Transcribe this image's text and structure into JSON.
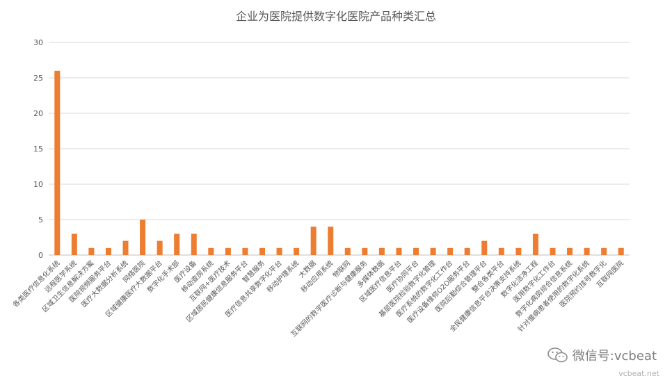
{
  "chart_data": {
    "type": "bar",
    "title": "企业为医院提供数字化医院产品种类汇总",
    "xlabel": "",
    "ylabel": "",
    "ylim": [
      0,
      30
    ],
    "yticks": [
      0,
      5,
      10,
      15,
      20,
      25,
      30
    ],
    "grid": true,
    "legend": "none",
    "color": "#ed7d31",
    "categories": [
      "各类医疗信息化系统",
      "远程医学系统",
      "区域卫生信息解决方案",
      "医院视频服务平台",
      "医疗大数据分析系统",
      "网络医院",
      "区域健康医疗大数据平台",
      "数字化手术部",
      "医疗设备",
      "移动查房系统",
      "互联网+医疗技术",
      "区域居民健康信息服务平台",
      "智慧服务",
      "医疗信息共享数字化平台",
      "移动护理系统",
      "大数据",
      "移动应用系统",
      "物联网",
      "互联网的数字医疗诊断与健康服务",
      "多媒体数据",
      "区域医疗信息平台",
      "医疗协同平台",
      "基层医院检验数字化管理",
      "医疗系统的数字化工作台",
      "医疗设备维修O2O服务平台",
      "医院后勤综合管理平台",
      "整合各类平台",
      "全民健康信息平台决策支持系统",
      "数字化洁净工程",
      "医用数字化工作台",
      "数字化病房综合信息系统",
      "针对慢病患者使用的数字化系统",
      "医院预约挂号数字化",
      "互联网医院"
    ],
    "values": [
      26,
      3,
      1,
      1,
      2,
      5,
      2,
      3,
      3,
      1,
      1,
      1,
      1,
      1,
      1,
      4,
      4,
      1,
      1,
      1,
      1,
      1,
      1,
      1,
      1,
      2,
      1,
      1,
      3,
      1,
      1,
      1,
      1,
      1
    ]
  },
  "watermark": {
    "label": "微信号:vcbeat",
    "icon": "wechat-icon",
    "site": "vcbeat.net"
  }
}
